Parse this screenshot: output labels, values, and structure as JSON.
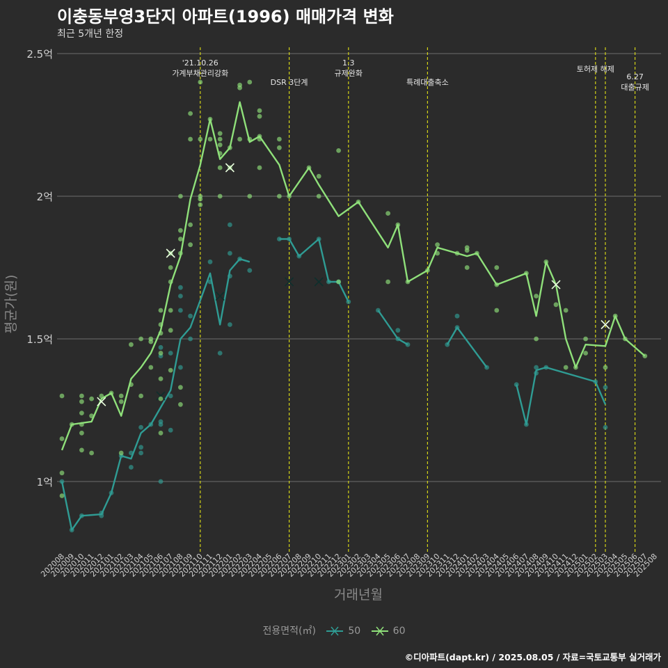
{
  "header": {
    "title": "이충동부영3단지 아파트(1996) 매매가격 변화",
    "subtitle": "최근 5개년 한정"
  },
  "footer": {
    "caption": "©디아파트(dapt.kr) / 2025.08.05 / 자료=국토교통부 실거래가"
  },
  "legend": {
    "title": "전용면적(㎡)"
  },
  "colors": {
    "background": "#2b2b2b",
    "grid": "#6e6e6e",
    "event_line": "#d4d416",
    "series_50": "#2f9c94",
    "series_60": "#8fe07a",
    "axis_text": "#d0d0d0",
    "axis_title": "#8a8a8a"
  },
  "chart_data": {
    "type": "line",
    "xlabel": "거래년월",
    "ylabel": "평균가(원)",
    "ylim": [
      0.75,
      2.52
    ],
    "yticks": [
      1,
      1.5,
      2,
      2.5
    ],
    "ytick_labels": [
      "1억",
      "1.5억",
      "2억",
      "2.5억"
    ],
    "categories": [
      "202008",
      "202009",
      "202010",
      "202011",
      "202012",
      "202101",
      "202102",
      "202103",
      "202104",
      "202105",
      "202106",
      "202107",
      "202108",
      "202109",
      "202110",
      "202111",
      "202112",
      "202201",
      "202202",
      "202203",
      "202204",
      "202205",
      "202206",
      "202207",
      "202208",
      "202209",
      "202210",
      "202211",
      "202212",
      "202301",
      "202302",
      "202303",
      "202304",
      "202305",
      "202306",
      "202307",
      "202308",
      "202309",
      "202310",
      "202311",
      "202312",
      "202401",
      "202402",
      "202403",
      "202404",
      "202405",
      "202406",
      "202407",
      "202408",
      "202409",
      "202410",
      "202411",
      "202412",
      "202501",
      "202502",
      "202503",
      "202504",
      "202505",
      "202506",
      "202507",
      "202508"
    ],
    "events": [
      {
        "x": "202110",
        "label": "'21.10.26\n가계부채관리강화"
      },
      {
        "x": "202207",
        "label": "DSR 3단계"
      },
      {
        "x": "202301",
        "label": "1.3\n규제완화"
      },
      {
        "x": "202309",
        "label": "특례대출축소"
      },
      {
        "x": "202502",
        "label": "토허제 해제"
      },
      {
        "x": "202503",
        "label": ""
      },
      {
        "x": "202506",
        "label": "6.27\n대출규제"
      }
    ],
    "series": [
      {
        "name": "50",
        "avg": [
          [
            "202008",
            1.0
          ],
          [
            "202009",
            0.83
          ],
          [
            "202010",
            0.88
          ],
          [
            "202012",
            0.885
          ],
          [
            "202101",
            0.96
          ],
          [
            "202102",
            1.09
          ],
          [
            "202103",
            1.08
          ],
          [
            "202104",
            1.17
          ],
          [
            "202105",
            1.2
          ],
          [
            "202106",
            1.26
          ],
          [
            "202107",
            1.32
          ],
          [
            "202108",
            1.5
          ],
          [
            "202109",
            1.54
          ],
          [
            "202111",
            1.73
          ],
          [
            "202112",
            1.55
          ],
          [
            "202201",
            1.74
          ],
          [
            "202202",
            1.78
          ],
          [
            "202203",
            1.77
          ]
        ],
        "avg_segments_2": [
          [
            "202206",
            1.85
          ],
          [
            "202207",
            1.85
          ],
          [
            "202208",
            1.79
          ],
          [
            "202210",
            1.85
          ],
          [
            "202211",
            1.7
          ],
          [
            "202212",
            1.7
          ],
          [
            "202301",
            1.63
          ]
        ],
        "avg_segments_3": [
          [
            "202304",
            1.6
          ],
          [
            "202306",
            1.5
          ],
          [
            "202307",
            1.48
          ]
        ],
        "avg_segments_4": [
          [
            "202311",
            1.48
          ],
          [
            "202312",
            1.54
          ],
          [
            "202403",
            1.4
          ]
        ],
        "avg_segments_5": [
          [
            "202406",
            1.34
          ],
          [
            "202407",
            1.2
          ],
          [
            "202408",
            1.39
          ],
          [
            "202409",
            1.4
          ],
          [
            "202502",
            1.35
          ],
          [
            "202503",
            1.27
          ]
        ],
        "points": [
          [
            "202008",
            1.0
          ],
          [
            "202009",
            0.83
          ],
          [
            "202010",
            0.88
          ],
          [
            "202012",
            0.88
          ],
          [
            "202012",
            0.89
          ],
          [
            "202101",
            0.96
          ],
          [
            "202102",
            1.09
          ],
          [
            "202103",
            1.05
          ],
          [
            "202103",
            1.1
          ],
          [
            "202104",
            1.1
          ],
          [
            "202104",
            1.12
          ],
          [
            "202104",
            1.19
          ],
          [
            "202105",
            1.2
          ],
          [
            "202106",
            1.0
          ],
          [
            "202106",
            1.2
          ],
          [
            "202106",
            1.21
          ],
          [
            "202106",
            1.44
          ],
          [
            "202106",
            1.47
          ],
          [
            "202107",
            1.18
          ],
          [
            "202107",
            1.3
          ],
          [
            "202107",
            1.45
          ],
          [
            "202108",
            1.4
          ],
          [
            "202108",
            1.6
          ],
          [
            "202108",
            1.65
          ],
          [
            "202108",
            1.68
          ],
          [
            "202109",
            1.5
          ],
          [
            "202109",
            1.58
          ],
          [
            "202111",
            1.7
          ],
          [
            "202111",
            1.77
          ],
          [
            "202112",
            1.45
          ],
          [
            "202201",
            1.55
          ],
          [
            "202201",
            1.72
          ],
          [
            "202201",
            1.8
          ],
          [
            "202201",
            1.9
          ],
          [
            "202202",
            1.78
          ],
          [
            "202203",
            1.74
          ],
          [
            "202206",
            1.85
          ],
          [
            "202207",
            1.85
          ],
          [
            "202208",
            1.79
          ],
          [
            "202210",
            1.85
          ],
          [
            "202211",
            1.7
          ],
          [
            "202212",
            1.7
          ],
          [
            "202301",
            1.63
          ],
          [
            "202304",
            1.6
          ],
          [
            "202306",
            1.53
          ],
          [
            "202306",
            1.5
          ],
          [
            "202307",
            1.48
          ],
          [
            "202311",
            1.48
          ],
          [
            "202312",
            1.54
          ],
          [
            "202312",
            1.58
          ],
          [
            "202403",
            1.4
          ],
          [
            "202406",
            1.34
          ],
          [
            "202407",
            1.2
          ],
          [
            "202408",
            1.38
          ],
          [
            "202408",
            1.4
          ],
          [
            "202409",
            1.4
          ],
          [
            "202502",
            1.35
          ],
          [
            "202503",
            1.33
          ],
          [
            "202503",
            1.19
          ]
        ],
        "crosses": [
          [
            "202106",
            1.3
          ],
          [
            "202112",
            1.65
          ],
          [
            "202207",
            1.7
          ],
          [
            "202210",
            1.7
          ]
        ]
      },
      {
        "name": "60",
        "avg": [
          [
            "202008",
            1.11
          ],
          [
            "202009",
            1.2
          ],
          [
            "202010",
            1.205
          ],
          [
            "202011",
            1.21
          ],
          [
            "202012",
            1.29
          ],
          [
            "202101",
            1.31
          ],
          [
            "202102",
            1.23
          ],
          [
            "202103",
            1.36
          ],
          [
            "202104",
            1.4
          ],
          [
            "202105",
            1.45
          ],
          [
            "202106",
            1.53
          ],
          [
            "202107",
            1.69
          ],
          [
            "202108",
            1.79
          ],
          [
            "202109",
            1.99
          ],
          [
            "202110",
            2.11
          ],
          [
            "202111",
            2.27
          ],
          [
            "202112",
            2.13
          ],
          [
            "202201",
            2.17
          ],
          [
            "202202",
            2.33
          ],
          [
            "202203",
            2.19
          ],
          [
            "202204",
            2.21
          ],
          [
            "202205",
            2.16
          ],
          [
            "202206",
            2.11
          ],
          [
            "202207",
            2.0
          ],
          [
            "202209",
            2.1
          ],
          [
            "202210",
            2.04
          ],
          [
            "202212",
            1.93
          ],
          [
            "202302",
            1.98
          ],
          [
            "202305",
            1.82
          ],
          [
            "202306",
            1.9
          ],
          [
            "202307",
            1.7
          ],
          [
            "202309",
            1.74
          ],
          [
            "202310",
            1.82
          ],
          [
            "202312",
            1.8
          ],
          [
            "202401",
            1.79
          ],
          [
            "202402",
            1.8
          ],
          [
            "202404",
            1.69
          ],
          [
            "202407",
            1.73
          ],
          [
            "202408",
            1.58
          ],
          [
            "202409",
            1.77
          ],
          [
            "202410",
            1.69
          ],
          [
            "202411",
            1.5
          ],
          [
            "202412",
            1.4
          ],
          [
            "202501",
            1.48
          ],
          [
            "202503",
            1.475
          ],
          [
            "202504",
            1.58
          ],
          [
            "202505",
            1.5
          ],
          [
            "202507",
            1.44
          ]
        ],
        "points": [
          [
            "202008",
            1.3
          ],
          [
            "202008",
            1.15
          ],
          [
            "202008",
            1.03
          ],
          [
            "202008",
            0.95
          ],
          [
            "202009",
            1.2
          ],
          [
            "202010",
            1.3
          ],
          [
            "202010",
            1.28
          ],
          [
            "202010",
            1.24
          ],
          [
            "202010",
            1.2
          ],
          [
            "202010",
            1.17
          ],
          [
            "202010",
            1.11
          ],
          [
            "202011",
            1.29
          ],
          [
            "202011",
            1.23
          ],
          [
            "202011",
            1.1
          ],
          [
            "202012",
            1.3
          ],
          [
            "202101",
            1.31
          ],
          [
            "202102",
            1.3
          ],
          [
            "202102",
            1.28
          ],
          [
            "202102",
            1.1
          ],
          [
            "202103",
            1.48
          ],
          [
            "202103",
            1.34
          ],
          [
            "202104",
            1.5
          ],
          [
            "202104",
            1.3
          ],
          [
            "202105",
            1.5
          ],
          [
            "202105",
            1.49
          ],
          [
            "202105",
            1.4
          ],
          [
            "202106",
            1.6
          ],
          [
            "202106",
            1.55
          ],
          [
            "202106",
            1.52
          ],
          [
            "202106",
            1.45
          ],
          [
            "202106",
            1.36
          ],
          [
            "202106",
            1.29
          ],
          [
            "202106",
            1.17
          ],
          [
            "202107",
            1.8
          ],
          [
            "202107",
            1.75
          ],
          [
            "202107",
            1.7
          ],
          [
            "202107",
            1.6
          ],
          [
            "202107",
            1.53
          ],
          [
            "202107",
            1.39
          ],
          [
            "202108",
            2.0
          ],
          [
            "202108",
            1.88
          ],
          [
            "202108",
            1.85
          ],
          [
            "202108",
            1.8
          ],
          [
            "202108",
            1.33
          ],
          [
            "202108",
            1.27
          ],
          [
            "202109",
            2.29
          ],
          [
            "202109",
            2.2
          ],
          [
            "202109",
            1.9
          ],
          [
            "202109",
            1.83
          ],
          [
            "202110",
            2.4
          ],
          [
            "202110",
            2.2
          ],
          [
            "202110",
            2.0
          ],
          [
            "202110",
            1.99
          ],
          [
            "202110",
            1.97
          ],
          [
            "202111",
            2.27
          ],
          [
            "202111",
            2.2
          ],
          [
            "202112",
            2.22
          ],
          [
            "202112",
            2.2
          ],
          [
            "202112",
            2.18
          ],
          [
            "202112",
            2.15
          ],
          [
            "202112",
            2.1
          ],
          [
            "202112",
            2.0
          ],
          [
            "202201",
            2.17
          ],
          [
            "202201",
            2.1
          ],
          [
            "202202",
            2.39
          ],
          [
            "202202",
            2.38
          ],
          [
            "202202",
            2.2
          ],
          [
            "202203",
            2.4
          ],
          [
            "202203",
            2.2
          ],
          [
            "202203",
            2.0
          ],
          [
            "202204",
            2.3
          ],
          [
            "202204",
            2.28
          ],
          [
            "202204",
            2.21
          ],
          [
            "202204",
            2.2
          ],
          [
            "202204",
            2.1
          ],
          [
            "202206",
            2.2
          ],
          [
            "202206",
            2.17
          ],
          [
            "202206",
            2.0
          ],
          [
            "202207",
            2.0
          ],
          [
            "202209",
            2.1
          ],
          [
            "202210",
            2.07
          ],
          [
            "202210",
            2.0
          ],
          [
            "202212",
            2.16
          ],
          [
            "202212",
            1.7
          ],
          [
            "202302",
            1.98
          ],
          [
            "202305",
            1.94
          ],
          [
            "202305",
            1.7
          ],
          [
            "202306",
            1.9
          ],
          [
            "202307",
            1.7
          ],
          [
            "202309",
            1.74
          ],
          [
            "202310",
            1.83
          ],
          [
            "202310",
            1.8
          ],
          [
            "202312",
            1.8
          ],
          [
            "202401",
            1.82
          ],
          [
            "202401",
            1.81
          ],
          [
            "202401",
            1.75
          ],
          [
            "202402",
            1.8
          ],
          [
            "202404",
            1.75
          ],
          [
            "202404",
            1.69
          ],
          [
            "202404",
            1.6
          ],
          [
            "202407",
            1.73
          ],
          [
            "202408",
            1.65
          ],
          [
            "202408",
            1.5
          ],
          [
            "202409",
            1.77
          ],
          [
            "202410",
            1.62
          ],
          [
            "202411",
            1.6
          ],
          [
            "202411",
            1.4
          ],
          [
            "202412",
            1.4
          ],
          [
            "202501",
            1.5
          ],
          [
            "202501",
            1.45
          ],
          [
            "202503",
            1.4
          ],
          [
            "202504",
            1.58
          ],
          [
            "202505",
            1.5
          ],
          [
            "202507",
            1.44
          ]
        ],
        "crosses": [
          [
            "202012",
            1.28
          ],
          [
            "202107",
            1.8
          ],
          [
            "202201",
            2.1
          ],
          [
            "202410",
            1.69
          ],
          [
            "202503",
            1.55
          ]
        ]
      }
    ]
  }
}
